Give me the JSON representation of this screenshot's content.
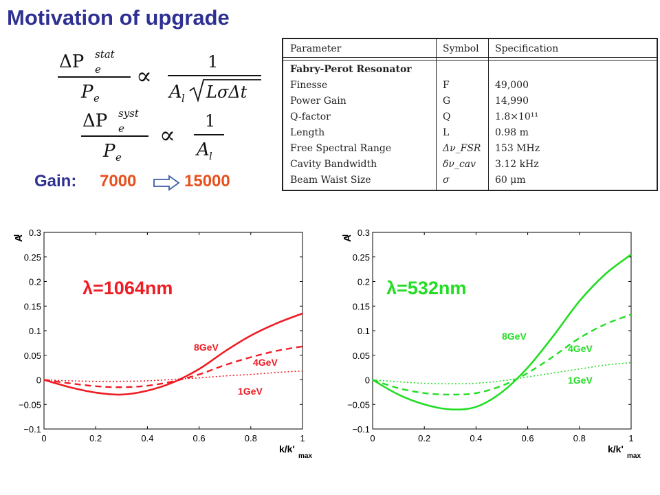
{
  "slide": {
    "title": "Motivation of upgrade"
  },
  "formulas": {
    "f1_lhs_num": "ΔP",
    "f1_lhs_sup": "stat",
    "f1_lhs_sub": "e",
    "f1_lhs_den": "P",
    "f1_den_sub": "e",
    "f1_rhs_num": "1",
    "f1_rhs_den": "A",
    "f1_rhs_den_sub": "l",
    "f1_rhs_sqrt": "LσΔt",
    "f2_lhs_num": "ΔP",
    "f2_lhs_sup": "syst",
    "f2_lhs_sub": "e",
    "f2_lhs_den": "P",
    "f2_den_sub": "e",
    "f2_rhs_num": "1",
    "f2_rhs_den": "A",
    "f2_rhs_den_sub": "l",
    "propto": "∝"
  },
  "gain": {
    "label": "Gain:",
    "from": "7000",
    "to": "15000"
  },
  "table": {
    "headers": [
      "Parameter",
      "Symbol",
      "Specification"
    ],
    "section": "Fabry-Perot Resonator",
    "rows": [
      [
        "Finesse",
        "F",
        "49,000"
      ],
      [
        "Power Gain",
        "G",
        "14,990"
      ],
      [
        "Q-factor",
        "Q",
        "1.8×10¹¹"
      ],
      [
        "Length",
        "L",
        "0.98 m"
      ],
      [
        "Free Spectral Range",
        "Δν_FSR",
        "153 MHz"
      ],
      [
        "Cavity Bandwidth",
        "δν_cav",
        "3.12 kHz"
      ],
      [
        "Beam Waist Size",
        "σ",
        "60 μm"
      ]
    ]
  },
  "chart_data": [
    {
      "type": "line",
      "title": "λ=1064nm",
      "color": "#ee1c24",
      "ylabel": "A",
      "ylabel_sub": "l",
      "xlabel": "k/k'",
      "xlabel_sub": "max",
      "xlim": [
        0,
        1
      ],
      "ylim": [
        -0.1,
        0.3
      ],
      "x_ticks": [
        "0",
        "0.2",
        "0.4",
        "0.6",
        "0.8",
        "1"
      ],
      "y_ticks": [
        "0.3",
        "0.25",
        "0.2",
        "0.15",
        "0.1",
        "0.05",
        "0",
        "−0.05",
        "−0.1"
      ],
      "x": [
        0,
        0.1,
        0.2,
        0.3,
        0.4,
        0.5,
        0.6,
        0.7,
        0.8,
        0.9,
        1.0
      ],
      "series": [
        {
          "name": "8GeV",
          "style": "solid",
          "values": [
            0,
            -0.015,
            -0.026,
            -0.03,
            -0.022,
            -0.005,
            0.022,
            0.058,
            0.09,
            0.115,
            0.135
          ]
        },
        {
          "name": "4GeV",
          "style": "dashed",
          "values": [
            0,
            -0.007,
            -0.013,
            -0.015,
            -0.012,
            -0.003,
            0.011,
            0.03,
            0.046,
            0.059,
            0.068
          ]
        },
        {
          "name": "1GeV",
          "style": "dotted",
          "values": [
            0,
            -0.002,
            -0.003,
            -0.003,
            -0.002,
            0.001,
            0.004,
            0.008,
            0.011,
            0.015,
            0.018
          ]
        }
      ],
      "grid": false
    },
    {
      "type": "line",
      "title": "λ=532nm",
      "color": "#22dd22",
      "ylabel": "A",
      "ylabel_sub": "l",
      "xlabel": "k/k'",
      "xlabel_sub": "max",
      "xlim": [
        0,
        1
      ],
      "ylim": [
        -0.1,
        0.3
      ],
      "x_ticks": [
        "0",
        "0.2",
        "0.4",
        "0.6",
        "0.8",
        "1"
      ],
      "y_ticks": [
        "0.3",
        "0.25",
        "0.2",
        "0.15",
        "0.1",
        "0.05",
        "0",
        "−0.05",
        "−0.1"
      ],
      "x": [
        0,
        0.1,
        0.2,
        0.3,
        0.4,
        0.5,
        0.6,
        0.7,
        0.8,
        0.9,
        1.0
      ],
      "series": [
        {
          "name": "8GeV",
          "style": "solid",
          "values": [
            0,
            -0.03,
            -0.05,
            -0.06,
            -0.055,
            -0.025,
            0.025,
            0.09,
            0.16,
            0.215,
            0.255
          ]
        },
        {
          "name": "4GeV",
          "style": "dashed",
          "values": [
            0,
            -0.017,
            -0.027,
            -0.03,
            -0.027,
            -0.012,
            0.014,
            0.048,
            0.085,
            0.113,
            0.133
          ]
        },
        {
          "name": "1GeV",
          "style": "dotted",
          "values": [
            0,
            -0.004,
            -0.007,
            -0.008,
            -0.007,
            -0.002,
            0.006,
            0.014,
            0.022,
            0.03,
            0.035
          ]
        }
      ],
      "grid": false
    }
  ]
}
